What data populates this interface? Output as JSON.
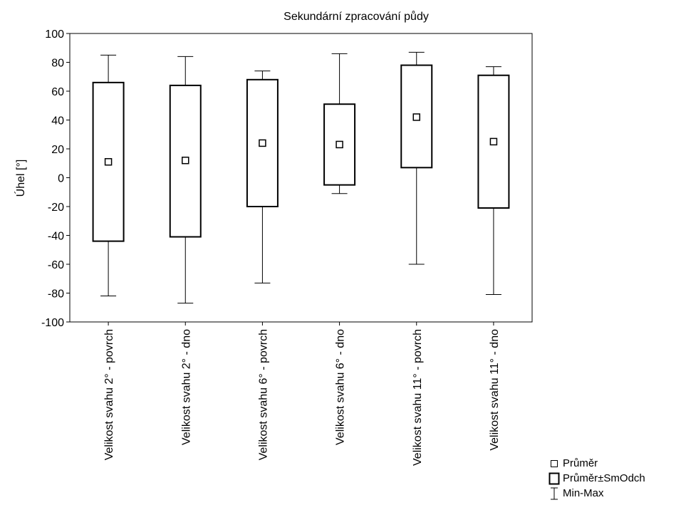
{
  "chart_data": {
    "type": "boxplot",
    "title": "Sekundární zpracování půdy",
    "ylabel": "Úhel [°]",
    "xlabel": "",
    "ylim": [
      -100,
      100
    ],
    "yticks": [
      100,
      80,
      60,
      40,
      20,
      0,
      -20,
      -40,
      -60,
      -80,
      -100
    ],
    "ytick_labels": [
      "100",
      "80",
      "60",
      "40",
      "20",
      "0",
      "-20",
      "-40",
      "-60",
      "-80",
      "-100"
    ],
    "grid": false,
    "legend_position": "bottom-right",
    "categories": [
      "Velikost svahu 2° - povrch",
      "Velikost svahu 2° - dno",
      "Velikost svahu 6° - povrch",
      "Velikost svahu 6° - dno",
      "Velikost svahu 11° - povrch",
      "Velikost svahu 11° - dno"
    ],
    "series": [
      {
        "category": "Velikost svahu 2° - povrch",
        "mean": 11,
        "mean_plus_sd": 66,
        "mean_minus_sd": -44,
        "max": 85,
        "min": -82
      },
      {
        "category": "Velikost svahu 2° - dno",
        "mean": 12,
        "mean_plus_sd": 64,
        "mean_minus_sd": -41,
        "max": 84,
        "min": -87
      },
      {
        "category": "Velikost svahu 6° - povrch",
        "mean": 24,
        "mean_plus_sd": 68,
        "mean_minus_sd": -20,
        "max": 74,
        "min": -73
      },
      {
        "category": "Velikost svahu 6° - dno",
        "mean": 23,
        "mean_plus_sd": 51,
        "mean_minus_sd": -5,
        "max": 86,
        "min": -11
      },
      {
        "category": "Velikost svahu 11° - povrch",
        "mean": 42,
        "mean_plus_sd": 78,
        "mean_minus_sd": 7,
        "max": 87,
        "min": -60
      },
      {
        "category": "Velikost svahu 11° - dno",
        "mean": 25,
        "mean_plus_sd": 71,
        "mean_minus_sd": -21,
        "max": 77,
        "min": -81
      }
    ],
    "legend": {
      "mean_label": "Průměr",
      "box_label": "Průměr±SmOdch",
      "whisker_label": "Min-Max"
    }
  }
}
